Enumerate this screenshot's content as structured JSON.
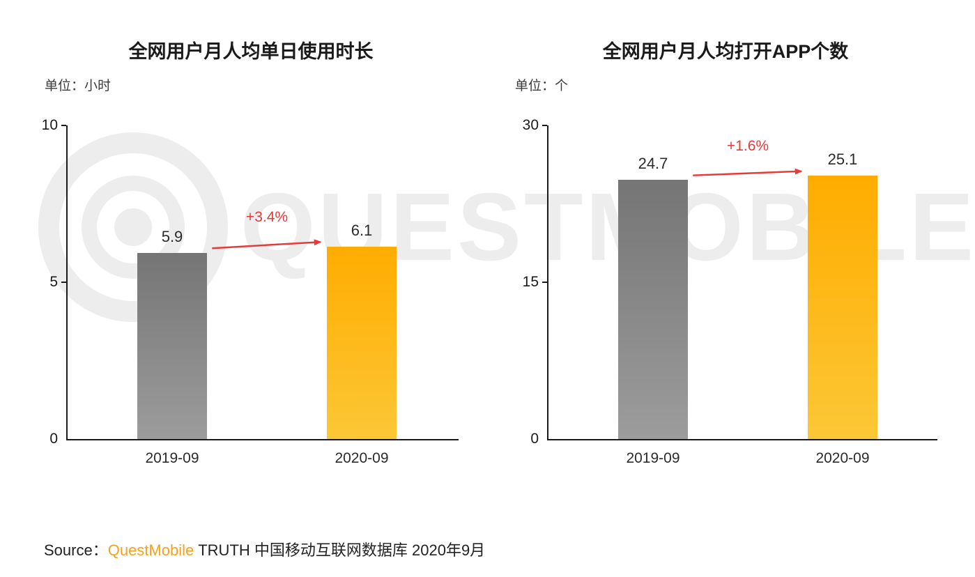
{
  "watermark": {
    "text": "QUESTMOBILE"
  },
  "chart_data": [
    {
      "type": "bar",
      "title": "全网用户月人均单日使用时长",
      "unit_label": "单位：小时",
      "categories": [
        "2019-09",
        "2020-09"
      ],
      "values": [
        5.9,
        6.1
      ],
      "ylim": [
        0,
        10
      ],
      "yticks": [
        0,
        5,
        10
      ],
      "change_label": "+3.4%",
      "legend": "none",
      "grid": "off"
    },
    {
      "type": "bar",
      "title": "全网用户月人均打开APP个数",
      "unit_label": "单位：个",
      "categories": [
        "2019-09",
        "2020-09"
      ],
      "values": [
        24.7,
        25.1
      ],
      "ylim": [
        0,
        30
      ],
      "yticks": [
        0,
        15,
        30
      ],
      "change_label": "+1.6%",
      "legend": "none",
      "grid": "off"
    }
  ],
  "source": {
    "label": "Source：",
    "brand": "QuestMobile",
    "rest": "TRUTH 中国移动互联网数据库 2020年9月"
  },
  "colors": {
    "bar_gray_top": "#757575",
    "bar_gray_bottom": "#9c9c9c",
    "bar_orange_top": "#ffac00",
    "bar_orange_bottom": "#fcc736",
    "accent_red": "#e83a3a",
    "brand_orange": "#f7a21a",
    "watermark_gray": "#ededed",
    "axis_black": "#1a1a1a"
  }
}
